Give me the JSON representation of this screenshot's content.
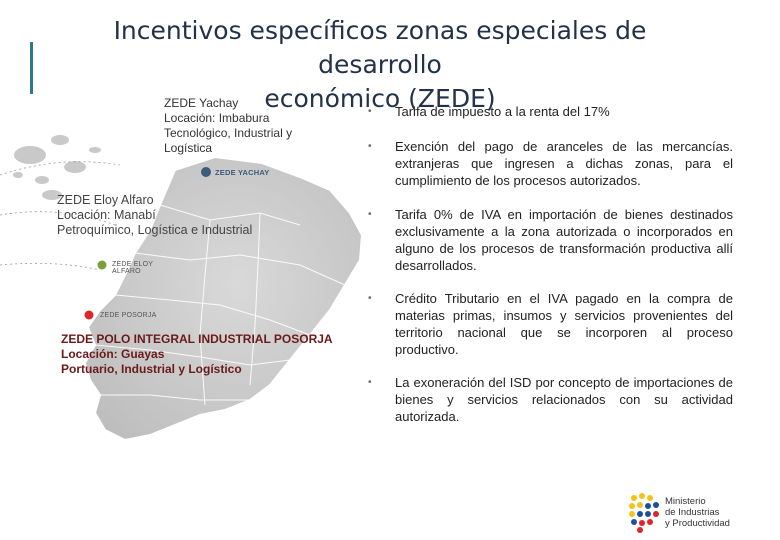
{
  "title": {
    "line1": "Incentivos específicos zonas especiales de desarrollo",
    "line2": "económico (ZEDE)"
  },
  "zones": {
    "yachay": {
      "name": "ZEDE Yachay",
      "location": "Locación: Imbabura",
      "type_line1": "Tecnológico, Industrial y",
      "type_line2": "Logística",
      "map_label": "ZEDE YACHAY",
      "color": "#3b5b7a"
    },
    "eloy": {
      "name": "ZEDE Eloy Alfaro",
      "location": "Locación: Manabí",
      "type": "Petroquímico, Logística e Industrial",
      "map_label_line1": "ZEDE ELOY",
      "map_label_line2": "ALFARO",
      "color": "#7aa03c"
    },
    "posorja": {
      "name": "ZEDE POLO INTEGRAL INDUSTRIAL POSORJA",
      "location": "Locación: Guayas",
      "type": "Portuario, Industrial y Logístico",
      "map_label": "ZEDE POSORJA",
      "color": "#e0242a"
    }
  },
  "bullets": [
    {
      "text": "Tarifa de impuesto a la renta del 17%"
    },
    {
      "text": "Exención del pago de aranceles de las mercancías. extranjeras que ingresen a dichas zonas, para el cumplimiento de los procesos autorizados."
    },
    {
      "text": "Tarifa 0% de IVA en importación de bienes destinados exclusivamente a la zona autorizada o incorporados en alguno de los procesos de transformación productiva allí desarrollados."
    },
    {
      "text": "Crédito Tributario en el IVA pagado en la compra de materias primas, insumos y servicios provenientes del territorio nacional que se incorporen al proceso productivo."
    },
    {
      "text": "La exoneración del ISD por concepto de importaciones de bienes y servicios relacionados con su actividad autorizada."
    }
  ],
  "bullet_glyph": "•",
  "logo": {
    "line1": "Ministerio",
    "line2": "de Industrias",
    "line3": "y Productividad"
  }
}
